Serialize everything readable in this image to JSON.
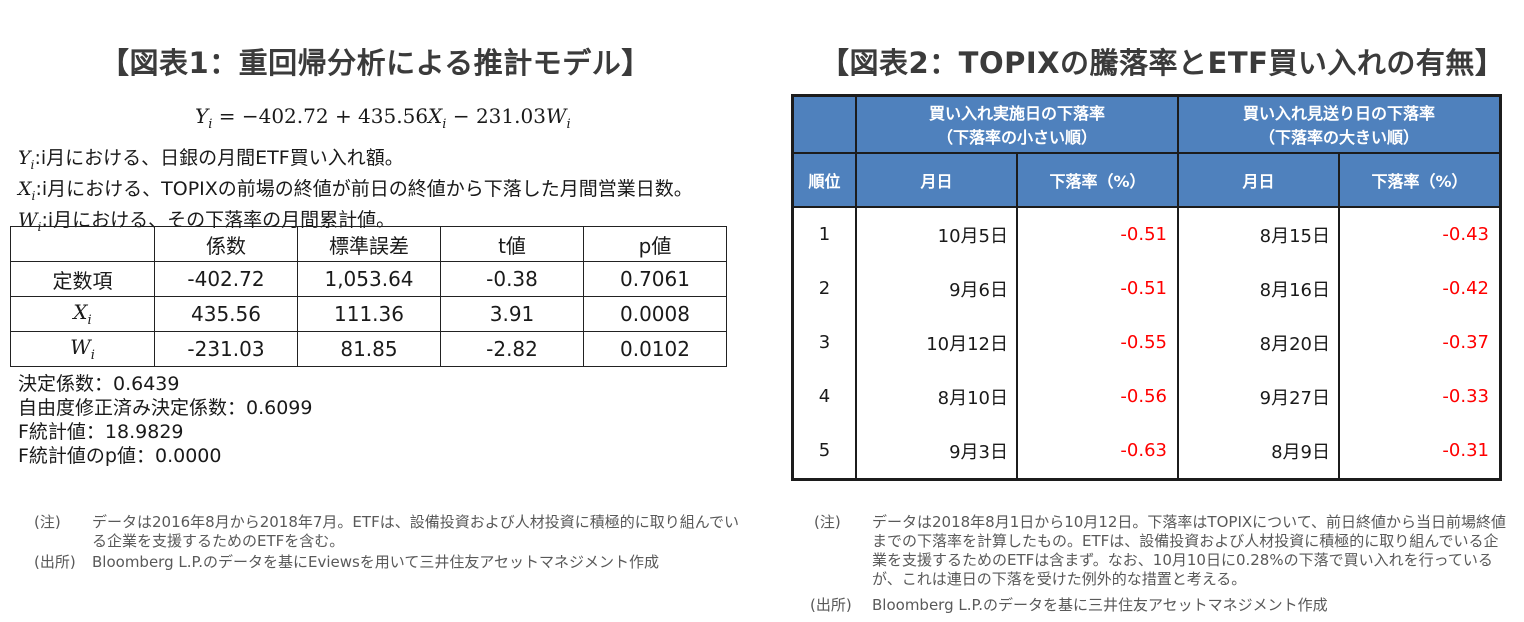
{
  "left": {
    "title": "【図表1：重回帰分析による推計モデル】",
    "equation": "= −402.72 + 435.56",
    "equation_mid": " − 231.03",
    "definitions": [
      ":i月における、日銀の月間ETF買い入れ額。",
      ":i月における、TOPIXの前場の終値が前日の終値から下落した月間営業日数。",
      ":i月における、その下落率の月間累計値。"
    ],
    "table": {
      "headers": [
        "",
        "係数",
        "標準誤差",
        "t値",
        "p値"
      ],
      "rows": [
        {
          "label": "定数項",
          "values": [
            "-402.72",
            "1,053.64",
            "-0.38",
            "0.7061"
          ]
        },
        {
          "label": "X",
          "values": [
            "435.56",
            "111.36",
            "3.91",
            "0.0008"
          ]
        },
        {
          "label": "W",
          "values": [
            "-231.03",
            "81.85",
            "-2.82",
            "0.0102"
          ]
        }
      ]
    },
    "stats": [
      "決定係数：0.6439",
      "自由度修正済み決定係数：0.6099",
      "F統計値：18.9829",
      "F統計値のp値：0.0000"
    ],
    "note_label": "(注)",
    "note_text": "データは2016年8月から2018年7月。ETFは、設備投資および人材投資に積極的に取り組んでいる企業を支援するためのETFを含む。",
    "source_label": "(出所)",
    "source_text": "Bloomberg L.P.のデータを基にEviewsを用いて三井住友アセットマネジメント作成"
  },
  "right": {
    "title": "【図表2：TOPIXの騰落率とETF買い入れの有無】",
    "group1_line1": "買い入れ実施日の下落率",
    "group1_line2": "（下落率の小さい順）",
    "group2_line1": "買い入れ見送り日の下落率",
    "group2_line2": "（下落率の大きい順）",
    "col_rank": "順位",
    "col_date": "月日",
    "col_rate": "下落率（%）",
    "rows": [
      {
        "rank": "1",
        "buy_date": "10月5日",
        "buy_rate": "-0.51",
        "skip_date": "8月15日",
        "skip_rate": "-0.43"
      },
      {
        "rank": "2",
        "buy_date": "9月6日",
        "buy_rate": "-0.51",
        "skip_date": "8月16日",
        "skip_rate": "-0.42"
      },
      {
        "rank": "3",
        "buy_date": "10月12日",
        "buy_rate": "-0.55",
        "skip_date": "8月20日",
        "skip_rate": "-0.37"
      },
      {
        "rank": "4",
        "buy_date": "8月10日",
        "buy_rate": "-0.56",
        "skip_date": "9月27日",
        "skip_rate": "-0.33"
      },
      {
        "rank": "5",
        "buy_date": "9月3日",
        "buy_rate": "-0.63",
        "skip_date": "8月9日",
        "skip_rate": "-0.31"
      }
    ],
    "note_label": "(注)",
    "note_text": "データは2018年8月1日から10月12日。下落率はTOPIXについて、前日終値から当日前場終値までの下落率を計算したもの。ETFは、設備投資および人材投資に積極的に取り組んでいる企業を支援するためのETFは含まず。なお、10月10日に0.28%の下落で買い入れを行っているが、これは連日の下落を受けた例外的な措置と考える。",
    "source_label": "(出所)",
    "source_text": "Bloomberg L.P.のデータを基に三井住友アセットマネジメント作成"
  }
}
